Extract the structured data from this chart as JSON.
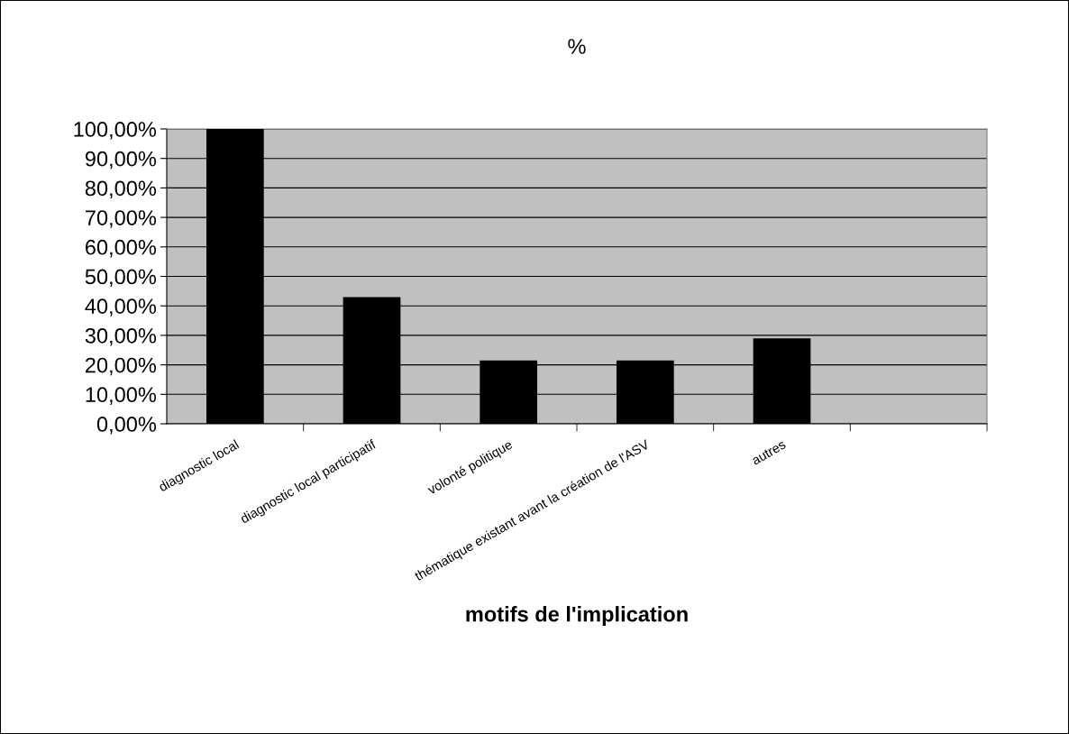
{
  "chart_data": {
    "type": "bar",
    "title": "%",
    "xlabel": "motifs de l'implication",
    "categories": [
      "diagnostic local",
      "diagnostic local participatif",
      "volonté politique",
      "thématique existant avant la création de l'ASV",
      "autres",
      null
    ],
    "values": [
      100,
      43,
      21.5,
      21.5,
      29,
      null
    ],
    "color": "#000000",
    "ylim": [
      0,
      100
    ],
    "yticks": [
      {
        "value": 0,
        "label": "0,00%"
      },
      {
        "value": 10,
        "label": "10,00%"
      },
      {
        "value": 20,
        "label": "20,00%"
      },
      {
        "value": 30,
        "label": "30,00%"
      },
      {
        "value": 40,
        "label": "40,00%"
      },
      {
        "value": 50,
        "label": "50,00%"
      },
      {
        "value": 60,
        "label": "60,00%"
      },
      {
        "value": 70,
        "label": "70,00%"
      },
      {
        "value": 80,
        "label": "80,00%"
      },
      {
        "value": 90,
        "label": "90,00%"
      },
      {
        "value": 100,
        "label": "100,00%"
      }
    ],
    "grid": "y",
    "legend": false
  }
}
